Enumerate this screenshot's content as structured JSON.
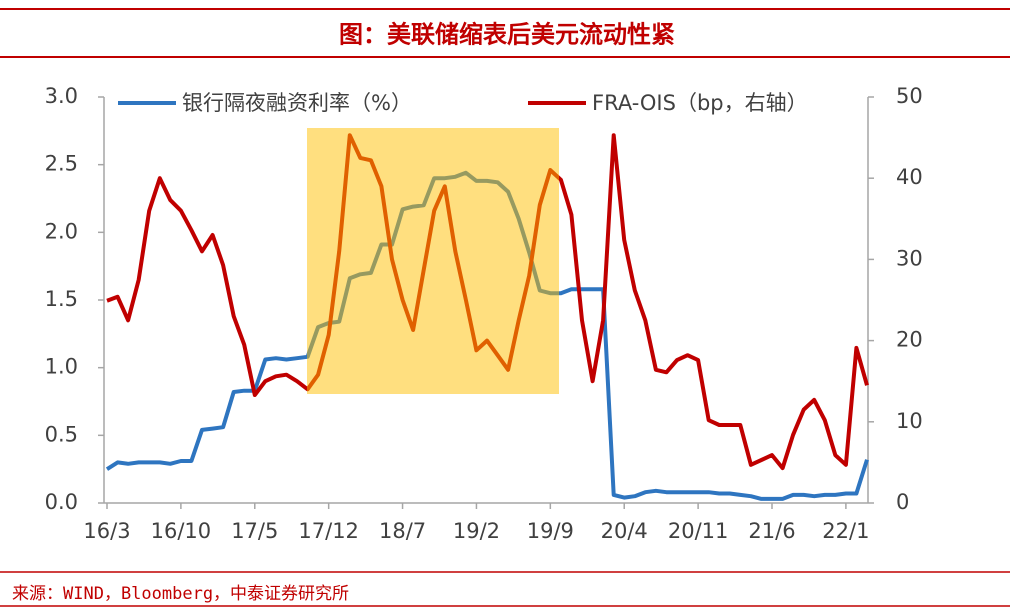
{
  "chart_data": {
    "type": "line",
    "title": "图：美联储缩表后美元流动性紧",
    "source": "来源：WIND，Bloomberg，中泰证券研究所",
    "categories": [
      "16/3",
      null,
      null,
      null,
      null,
      null,
      null,
      "16/10",
      null,
      null,
      null,
      null,
      null,
      null,
      "17/5",
      null,
      null,
      null,
      null,
      null,
      null,
      "17/12",
      null,
      null,
      null,
      null,
      null,
      null,
      "18/7",
      null,
      null,
      null,
      null,
      null,
      null,
      "19/2",
      null,
      null,
      null,
      null,
      null,
      null,
      "19/9",
      null,
      null,
      null,
      null,
      null,
      null,
      "20/4",
      null,
      null,
      null,
      null,
      null,
      null,
      "20/11",
      null,
      null,
      null,
      null,
      null,
      null,
      "21/6",
      null,
      null,
      null,
      null,
      null,
      null,
      "22/1",
      null,
      null
    ],
    "ylim": [
      0,
      3
    ],
    "yticks": [
      {
        "value": 0,
        "label": "0.0"
      },
      0.5,
      {
        "value": 1,
        "label": "1.0"
      },
      1.5,
      {
        "value": 2,
        "label": "2.0"
      },
      2.5,
      {
        "value": 3,
        "label": "3.0"
      }
    ],
    "y2lim": [
      0,
      50
    ],
    "y2ticks": [
      0,
      10,
      20,
      30,
      40,
      50
    ],
    "series": [
      {
        "name": "银行隔夜融资利率（%）",
        "color": "#2e75c0",
        "values": [
          0.25,
          0.3,
          0.29,
          0.3,
          0.3,
          0.3,
          0.29,
          0.31,
          0.31,
          0.54,
          0.55,
          0.56,
          0.82,
          0.83,
          0.83,
          1.06,
          1.07,
          1.06,
          1.07,
          1.08,
          1.3,
          1.33,
          1.34,
          1.66,
          1.69,
          1.7,
          1.91,
          1.91,
          2.17,
          2.19,
          2.2,
          2.4,
          2.4,
          2.41,
          2.44,
          2.38,
          2.38,
          2.37,
          2.3,
          2.1,
          1.85,
          1.57,
          1.55,
          1.55,
          1.58,
          1.58,
          1.58,
          1.58,
          0.06,
          0.04,
          0.05,
          0.08,
          0.09,
          0.08,
          0.08,
          0.08,
          0.08,
          0.08,
          0.07,
          0.07,
          0.06,
          0.05,
          0.03,
          0.03,
          0.03,
          0.06,
          0.06,
          0.05,
          0.06,
          0.06,
          0.07,
          0.07,
          0.32
        ]
      },
      {
        "name": "FRA-OIS（bp，右轴）",
        "color": "#c00000",
        "axis": "y2",
        "values": [
          24.9,
          25.4,
          22.5,
          27.5,
          36,
          40,
          37.3,
          36,
          33.6,
          31,
          33,
          29.3,
          23,
          19.5,
          13.3,
          15,
          15.6,
          15.8,
          15,
          14,
          15.8,
          20.7,
          31,
          45.3,
          42.5,
          42.2,
          39,
          30,
          25,
          21.3,
          28.7,
          36,
          39,
          31,
          25,
          18.8,
          20,
          18.2,
          16.4,
          22.5,
          28,
          36.7,
          41,
          39.8,
          35.5,
          22.5,
          15,
          22.5,
          45.3,
          32.4,
          26.2,
          22.5,
          16.4,
          16.1,
          17.6,
          18.2,
          17.6,
          10.2,
          9.6,
          9.6,
          9.6,
          4.7,
          5.3,
          5.9,
          4.3,
          8.4,
          11.5,
          12.7,
          10.2,
          5.9,
          4.7,
          19.1,
          14.5
        ]
      }
    ]
  }
}
